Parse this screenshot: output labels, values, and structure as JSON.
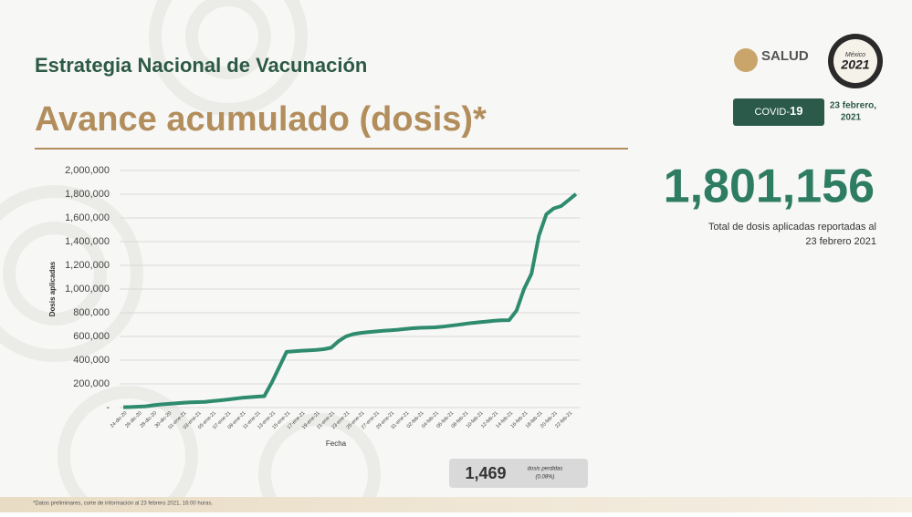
{
  "header": {
    "title": "Estrategia Nacional de Vacunación",
    "subtitle": "Avance acumulado (dosis)*"
  },
  "logos": {
    "salud": "SALUD",
    "mexico": "México",
    "year": "2021"
  },
  "badge": {
    "prefix": "COVID-",
    "number": "19"
  },
  "date": {
    "line1": "23 febrero,",
    "line2": "2021"
  },
  "total": {
    "value": "1,801,156",
    "caption1": "Total de dosis aplicadas reportadas al",
    "caption2": "23 febrero 2021"
  },
  "lost": {
    "value": "1,469",
    "label": "dosis perdidas",
    "percent": "(0.08%)"
  },
  "footnote": "*Datos preliminares, corte de información al 23 febrero 2021, 16:00 horas.",
  "chart_data": {
    "type": "line",
    "x_label": "Fecha",
    "y_label": "Dosis aplicadas",
    "color": "#2e8b6e",
    "grid": true,
    "categories": [
      "24-dic-20",
      null,
      "26-dic-20",
      null,
      "28-dic-20",
      null,
      "30-dic-20",
      null,
      "01-ene-21",
      null,
      "03-ene-21",
      null,
      "05-ene-21",
      null,
      "07-ene-21",
      null,
      "09-ene-21",
      null,
      "11-ene-21",
      null,
      "13-ene-21",
      null,
      "15-ene-21",
      null,
      "17-ene-21",
      null,
      "19-ene-21",
      null,
      "21-ene-21",
      null,
      "23-ene-21",
      null,
      "25-ene-21",
      null,
      "27-ene-21",
      null,
      "29-ene-21",
      null,
      "31-ene-21",
      null,
      "02-feb-21",
      null,
      "04-feb-21",
      null,
      "06-feb-21",
      null,
      "08-feb-21",
      null,
      "10-feb-21",
      null,
      "12-feb-21",
      null,
      "14-feb-21",
      null,
      "16-feb-21",
      null,
      "18-feb-21",
      null,
      "20-feb-21",
      null,
      "22-feb-21",
      null
    ],
    "values": [
      2924,
      4500,
      8000,
      11000,
      19000,
      26000,
      31000,
      35000,
      40000,
      44000,
      46000,
      48000,
      55000,
      61000,
      68000,
      75000,
      82000,
      88000,
      92000,
      96000,
      210000,
      340000,
      470000,
      475000,
      480000,
      483000,
      486000,
      492000,
      505000,
      560000,
      600000,
      620000,
      630000,
      636000,
      642000,
      648000,
      652000,
      657000,
      664000,
      669000,
      673000,
      675000,
      677000,
      682000,
      690000,
      698000,
      706000,
      714000,
      720000,
      726000,
      733000,
      736000,
      738000,
      820000,
      1000000,
      1130000,
      1450000,
      1630000,
      1680000,
      1700000,
      1750000,
      1801156
    ],
    "ylim": [
      0,
      2000000
    ],
    "yticks": [
      {
        "value": 0,
        "label": "-"
      },
      {
        "value": 200000,
        "label": "200,000"
      },
      {
        "value": 400000,
        "label": "400,000"
      },
      {
        "value": 600000,
        "label": "600,000"
      },
      {
        "value": 800000,
        "label": "800,000"
      },
      {
        "value": 1000000,
        "label": "1,000,000"
      },
      {
        "value": 1200000,
        "label": "1,200,000"
      },
      {
        "value": 1400000,
        "label": "1,400,000"
      },
      {
        "value": 1600000,
        "label": "1,600,000"
      },
      {
        "value": 1800000,
        "label": "1,800,000"
      },
      {
        "value": 2000000,
        "label": "2,000,000"
      }
    ]
  }
}
